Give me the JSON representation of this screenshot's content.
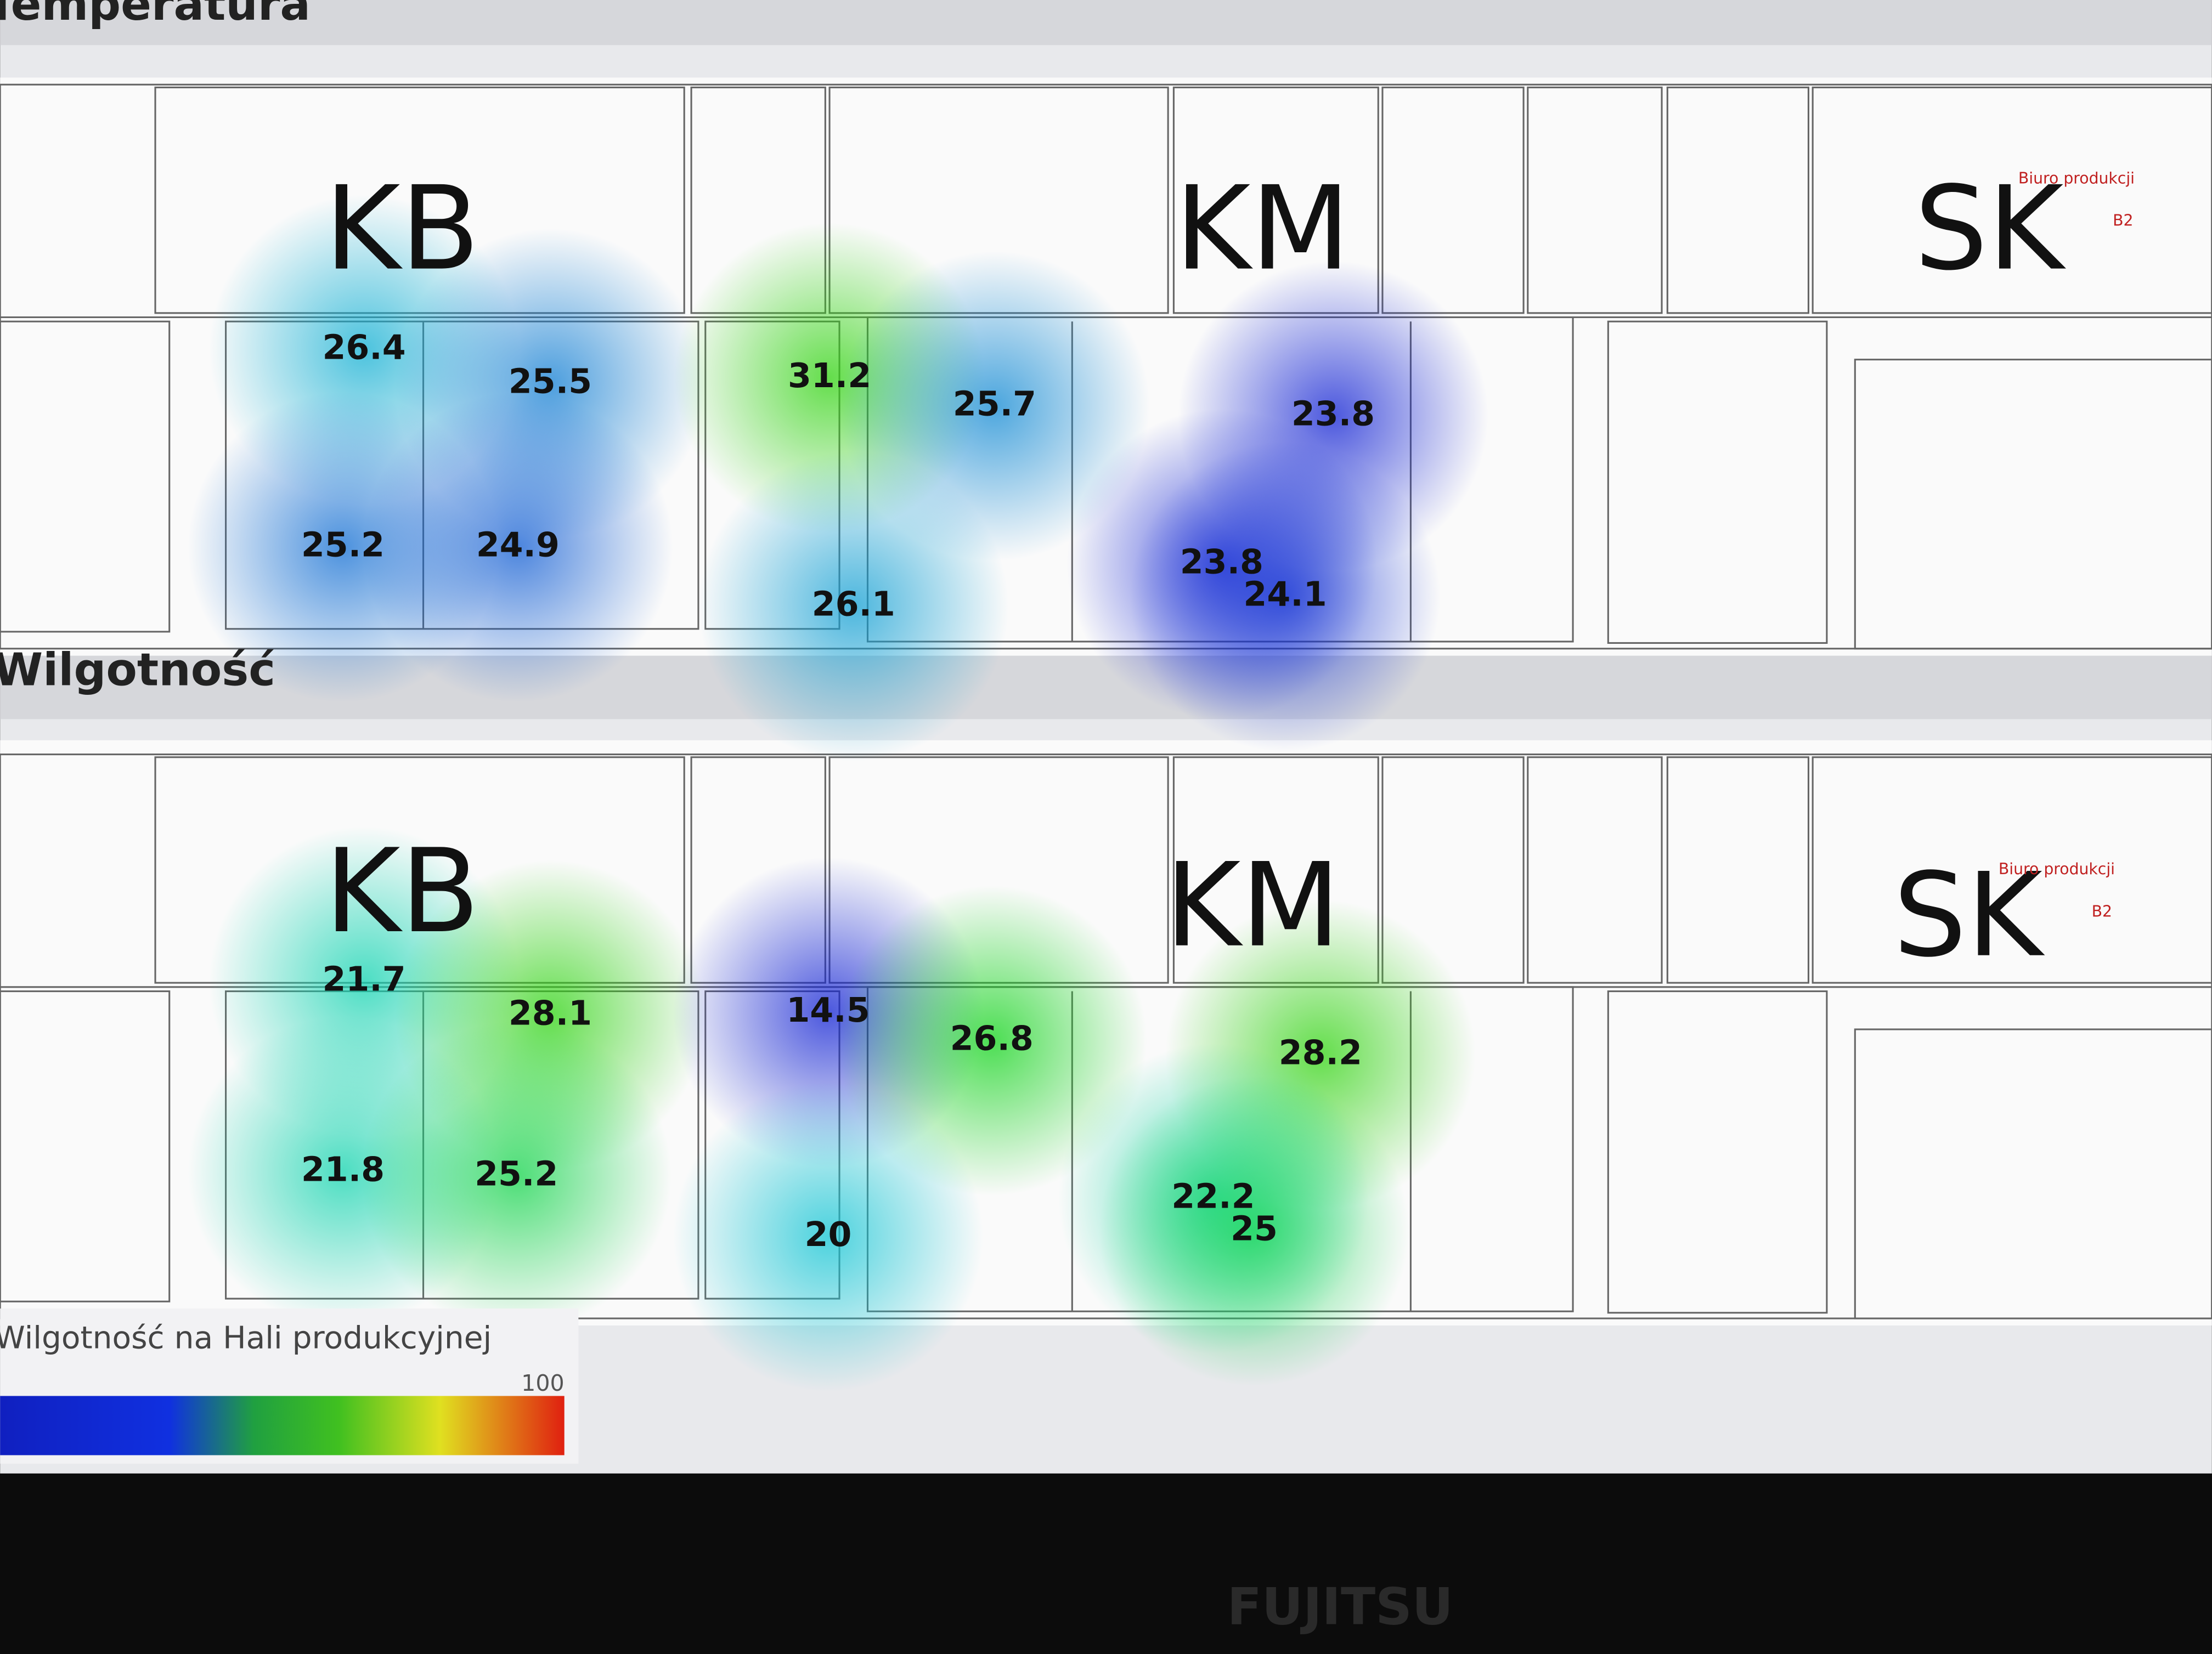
{
  "panels": [
    {
      "title": "Temperatura",
      "zones": [
        "KB",
        "KM",
        "SK"
      ],
      "readings": [
        26.4,
        25.5,
        31.2,
        25.7,
        23.8,
        25.2,
        24.9,
        26.1,
        23.8,
        24.1
      ],
      "room_labels": [
        "Biuro produkcji",
        "B2"
      ]
    },
    {
      "title": "Wilgotność",
      "zones": [
        "KB",
        "KM",
        "SK"
      ],
      "readings": [
        21.7,
        28.1,
        14.5,
        26.8,
        28.2,
        21.8,
        25.2,
        20,
        22.2,
        25
      ],
      "room_labels": [
        "Biuro produkcji",
        "B2"
      ]
    }
  ],
  "legend": {
    "title": "Wilgotność na Hali produkcyjnej",
    "max_label": "100"
  },
  "monitor_brand": "FUJITSU"
}
